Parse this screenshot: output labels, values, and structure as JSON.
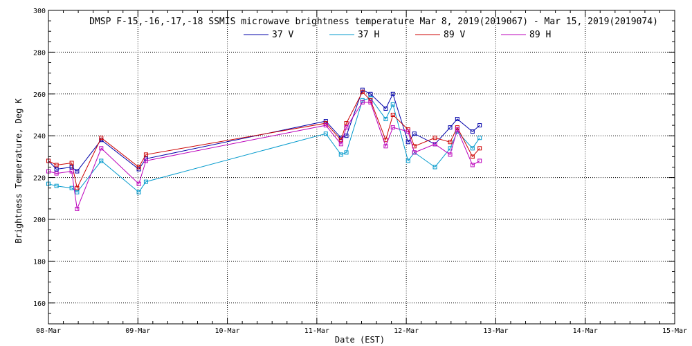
{
  "chart_data": {
    "type": "line",
    "title": "DMSP F-15,-16,-17,-18 SSMIS microwave brightness temperature Mar  8, 2019(2019067) - Mar 15, 2019(2019074)",
    "xlabel": "Date (EST)",
    "ylabel": "Brightness Temperature, Deg K",
    "xlim": [
      0,
      7
    ],
    "ylim": [
      150,
      300
    ],
    "x_tick_labels": [
      "08-Mar",
      "09-Mar",
      "10-Mar",
      "11-Mar",
      "12-Mar",
      "13-Mar",
      "14-Mar",
      "15-Mar"
    ],
    "y_ticks": [
      160,
      180,
      200,
      220,
      240,
      260,
      280,
      300
    ],
    "grid": true,
    "legend_position": "top-center",
    "series": [
      {
        "name": "37 V",
        "color": "#0000aa",
        "points": [
          [
            0,
            228
          ],
          [
            0.09,
            224
          ],
          [
            0.26,
            225
          ],
          [
            0.32,
            223
          ],
          [
            0.59,
            238
          ],
          [
            1.01,
            224
          ],
          [
            1.09,
            229
          ],
          [
            3.1,
            247
          ],
          [
            3.27,
            239
          ],
          [
            3.33,
            240
          ],
          [
            3.51,
            262
          ],
          [
            3.6,
            260
          ],
          [
            3.77,
            253
          ],
          [
            3.85,
            260
          ],
          [
            4.02,
            237
          ],
          [
            4.09,
            241
          ],
          [
            4.32,
            236
          ],
          [
            4.49,
            244
          ],
          [
            4.57,
            248
          ],
          [
            4.74,
            242
          ],
          [
            4.82,
            245
          ]
        ]
      },
      {
        "name": "37 H",
        "color": "#0099cc",
        "points": [
          [
            0,
            217
          ],
          [
            0.09,
            216
          ],
          [
            0.26,
            215
          ],
          [
            0.32,
            213
          ],
          [
            0.59,
            228
          ],
          [
            1.01,
            213
          ],
          [
            1.09,
            218
          ],
          [
            3.1,
            241
          ],
          [
            3.27,
            231
          ],
          [
            3.33,
            232
          ],
          [
            3.51,
            257
          ],
          [
            3.6,
            258
          ],
          [
            3.77,
            248
          ],
          [
            3.85,
            255
          ],
          [
            4.02,
            228
          ],
          [
            4.09,
            232
          ],
          [
            4.32,
            225
          ],
          [
            4.49,
            234
          ],
          [
            4.57,
            242
          ],
          [
            4.74,
            234
          ],
          [
            4.82,
            239
          ]
        ]
      },
      {
        "name": "89 V",
        "color": "#cc0000",
        "points": [
          [
            0,
            228
          ],
          [
            0.09,
            226
          ],
          [
            0.26,
            227
          ],
          [
            0.32,
            215
          ],
          [
            0.59,
            239
          ],
          [
            1.01,
            225
          ],
          [
            1.09,
            231
          ],
          [
            3.1,
            246
          ],
          [
            3.27,
            238
          ],
          [
            3.33,
            246
          ],
          [
            3.51,
            261
          ],
          [
            3.6,
            257
          ],
          [
            3.77,
            238
          ],
          [
            3.85,
            250
          ],
          [
            4.02,
            243
          ],
          [
            4.09,
            235
          ],
          [
            4.32,
            239
          ],
          [
            4.49,
            237
          ],
          [
            4.57,
            244
          ],
          [
            4.74,
            230
          ],
          [
            4.82,
            234
          ]
        ]
      },
      {
        "name": "89 H",
        "color": "#bb00bb",
        "points": [
          [
            0,
            223
          ],
          [
            0.09,
            222
          ],
          [
            0.26,
            223
          ],
          [
            0.32,
            205
          ],
          [
            0.59,
            234
          ],
          [
            1.01,
            217
          ],
          [
            1.09,
            228
          ],
          [
            3.1,
            245
          ],
          [
            3.27,
            236
          ],
          [
            3.33,
            244
          ],
          [
            3.51,
            256
          ],
          [
            3.6,
            256
          ],
          [
            3.77,
            235
          ],
          [
            3.85,
            244
          ],
          [
            4.02,
            242
          ],
          [
            4.09,
            232
          ],
          [
            4.32,
            236
          ],
          [
            4.49,
            231
          ],
          [
            4.57,
            243
          ],
          [
            4.74,
            226
          ],
          [
            4.82,
            228
          ]
        ]
      }
    ]
  }
}
